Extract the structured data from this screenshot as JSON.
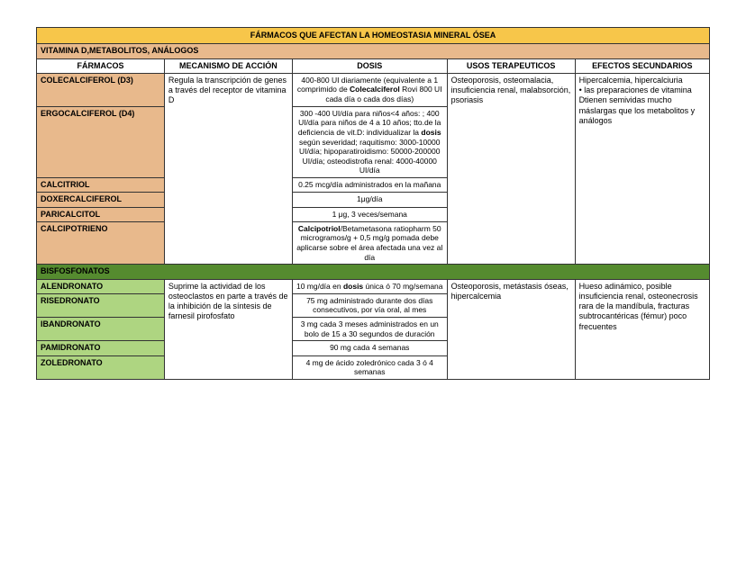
{
  "colors": {
    "title_bg": "#f7c64a",
    "section1_bg": "#e8b98c",
    "section2_bg": "#558b2f",
    "section2_fg": "#000000",
    "drug1_bg": "#e8b98c",
    "drug2_bg": "#aed581",
    "header_bg": "#ffffff",
    "border": "#333333"
  },
  "col_widths": [
    "19%",
    "19%",
    "23%",
    "19%",
    "20%"
  ],
  "title": "FÁRMACOS QUE AFECTAN LA HOMEOSTASIA MINERAL ÓSEA",
  "headers": [
    "FÁRMACOS",
    "MECANISMO DE ACCIÓN",
    "DOSIS",
    "USOS TERAPEUTICOS",
    "EFECTOS SECUNDARIOS"
  ],
  "section1": {
    "label": "VITAMINA D,METABOLITOS, ANÁLOGOS",
    "mechanism": "Regula la transcripción de genes a través del receptor de vitamina D",
    "uses": "Osteoporosis, osteomalacia, insuficiencia renal, malabsorción, psoriasis",
    "effects_l1": "Hipercalcemia, hipercalciuria",
    "effects_l2": "• las preparaciones de vitamina Dtienen semividas mucho máslargas que los metabolitos y análogos",
    "drugs": {
      "d0": {
        "name": "COLECALCIFEROL (D3)",
        "dose_pre": "400-800 UI diariamente (equivalente a 1 comprimido de ",
        "dose_bold": "Colecalciferol",
        "dose_post": " Rovi 800 UI cada día o cada dos días)"
      },
      "d1": {
        "name": "ERGOCALCIFEROL (D4)",
        "dose_pre": "300 -400 UI/día para niños<4 años: ; 400 UI/día para niños de 4 a 10 años; tto.de la deficiencia de vit.D: individualizar la ",
        "dose_bold": "dosis",
        "dose_post": " según severidad; raquitismo: 3000-10000 UI/día; hipoparatiroidismo: 50000-200000 UI/día; osteodistrofia renal: 4000-40000 UI/día"
      },
      "d2": {
        "name": "CALCITRIOL",
        "dose": "0.25 mcg/día administrados en la mañana"
      },
      "d3": {
        "name": "DOXERCALCIFEROL",
        "dose": "1μg/día"
      },
      "d4": {
        "name": "PARICALCITOL",
        "dose": "1 μg, 3 veces/semana"
      },
      "d5": {
        "name": "CALCIPOTRIENO",
        "dose_bold": "Calcipotriol",
        "dose_post": "/Betametasona ratiopharm 50 microgramos/g + 0,5 mg/g pomada debe aplicarse sobre el área afectada una vez al día"
      }
    }
  },
  "section2": {
    "label": "BISFOSFONATOS",
    "mechanism": "Suprime la actividad de los osteoclastos en parte a través de la inhibición de la síntesis de farnesil pirofosfato",
    "uses": "Osteoporosis, metástasis óseas, hipercalcemia",
    "effects": "Hueso adinámico, posible insuficiencia renal, osteonecrosis\nrara de la mandíbula, fracturas subtrocantéricas (fémur) poco\nfrecuentes",
    "drugs": {
      "d0": {
        "name": "ALENDRONATO",
        "dose_pre": "10 mg/día en ",
        "dose_bold": "dosis",
        "dose_post": " única ó 70 mg/semana"
      },
      "d1": {
        "name": "RISEDRONATO",
        "dose": "75 mg administrado durante dos días consecutivos, por vía oral, al mes"
      },
      "d2": {
        "name": "IBANDRONATO",
        "dose": "3 mg cada 3 meses administrados en un bolo de 15 a 30 segundos de duración"
      },
      "d3": {
        "name": "PAMIDRONATO",
        "dose": "90 mg cada 4 semanas"
      },
      "d4": {
        "name": "ZOLEDRONATO",
        "dose": "4 mg de ácido zoledrónico cada 3 ó 4 semanas"
      }
    }
  }
}
